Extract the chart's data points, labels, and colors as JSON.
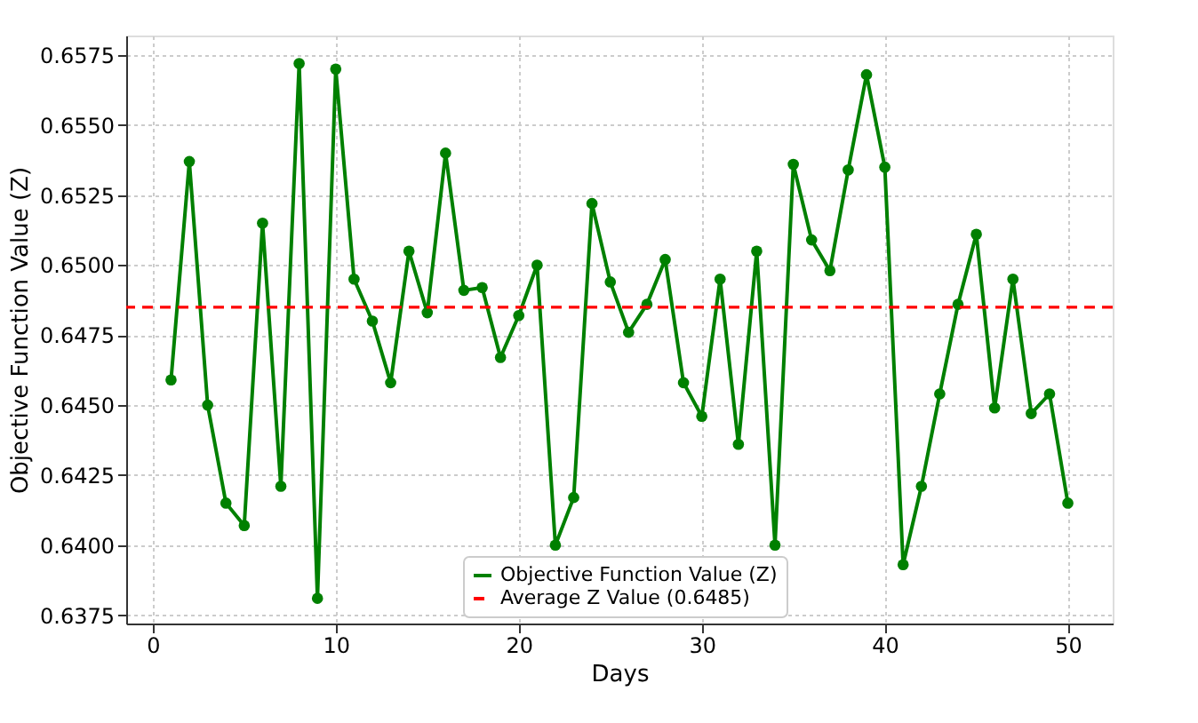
{
  "chart_data": {
    "type": "line",
    "xlabel": "Days",
    "ylabel": "Objective Function Value (Z)",
    "x": [
      1,
      2,
      3,
      4,
      5,
      6,
      7,
      8,
      9,
      10,
      11,
      12,
      13,
      14,
      15,
      16,
      17,
      18,
      19,
      20,
      21,
      22,
      23,
      24,
      25,
      26,
      27,
      28,
      29,
      30,
      31,
      32,
      33,
      34,
      35,
      36,
      37,
      38,
      39,
      40,
      41,
      42,
      43,
      44,
      45,
      46,
      47,
      48,
      49,
      50
    ],
    "series": [
      {
        "name": "Objective Function Value (Z)",
        "color": "#008000",
        "values": [
          0.6459,
          0.6537,
          0.645,
          0.6415,
          0.6407,
          0.6515,
          0.6421,
          0.6572,
          0.6381,
          0.657,
          0.6495,
          0.648,
          0.6458,
          0.6505,
          0.6483,
          0.654,
          0.6491,
          0.6492,
          0.6467,
          0.6482,
          0.65,
          0.64,
          0.6417,
          0.6522,
          0.6494,
          0.6476,
          0.6486,
          0.6502,
          0.6458,
          0.6446,
          0.6495,
          0.6436,
          0.6505,
          0.64,
          0.6536,
          0.6509,
          0.6498,
          0.6534,
          0.6568,
          0.6535,
          0.6393,
          0.6421,
          0.6454,
          0.6486,
          0.6511,
          0.6449,
          0.6495,
          0.6447,
          0.6454,
          0.6415
        ]
      }
    ],
    "ref_lines": [
      {
        "axis": "y",
        "value": 0.6485,
        "label": "Average Z Value (0.6485)",
        "color": "#ff0000",
        "line_style": "dashed"
      }
    ],
    "xlim": [
      -1.45,
      52.45
    ],
    "xticks": [
      0,
      10,
      20,
      30,
      40,
      50
    ],
    "ylim": [
      0.6372,
      0.6582
    ],
    "yticks": [
      0.6375,
      {
        "value": 0.64,
        "label": "0.6400"
      },
      0.6425,
      {
        "value": 0.645,
        "label": "0.6450"
      },
      0.6475,
      {
        "value": 0.65,
        "label": "0.6500"
      },
      0.6525,
      {
        "value": 0.655,
        "label": "0.6550"
      },
      0.6575
    ],
    "grid": true,
    "legend": "bottom",
    "marker": "circle",
    "line_style": "solid"
  }
}
